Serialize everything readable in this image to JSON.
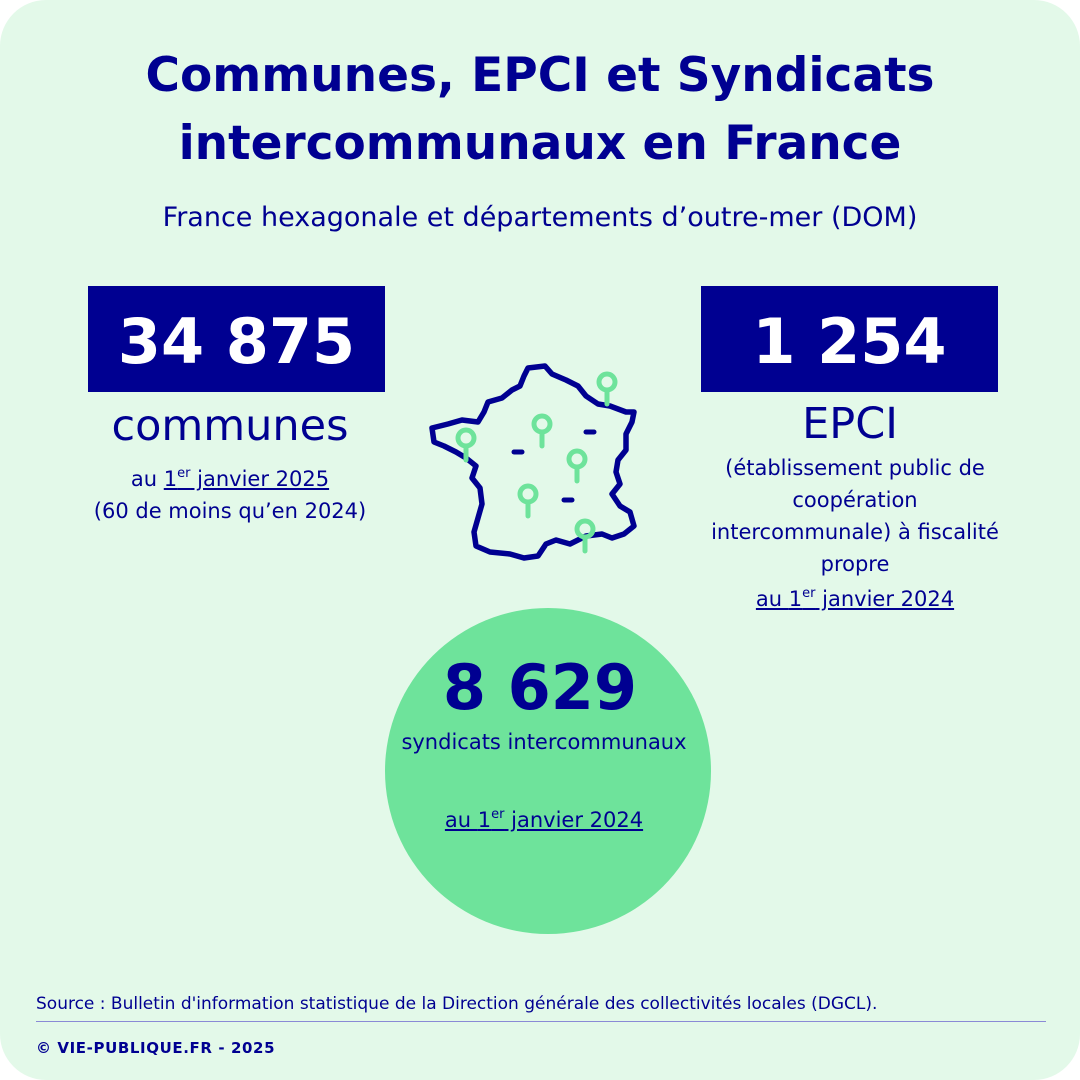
{
  "header": {
    "title": "Communes, EPCI et Syndicats intercommunaux en France",
    "subtitle": "France hexagonale et départements d’outre-mer (DOM)"
  },
  "communes": {
    "number": "34 875",
    "label": "communes",
    "date_prefix": "au ",
    "date_day": "1",
    "date_sup": "er",
    "date_suffix": " janvier 2025",
    "note": "(60 de moins qu’en 2024)"
  },
  "epci": {
    "number": "1 254",
    "label": "EPCI",
    "description": "(établissement public de coopération intercommunale) à fiscalité propre",
    "date_prefix": "au ",
    "date_day": "1",
    "date_sup": "er",
    "date_suffix": " janvier 2024"
  },
  "syndicats": {
    "number": "8 629",
    "label": "syndicats intercommunaux",
    "date_prefix": "au ",
    "date_day": "1",
    "date_sup": "er",
    "date_suffix": " janvier 2024"
  },
  "map_icon": {
    "name": "france-map-icon",
    "outline_color": "#000091",
    "pin_color": "#6ee39b"
  },
  "colors": {
    "background": "#e3f9e9",
    "primary": "#000091",
    "accent": "#6ee39b"
  },
  "footer": {
    "source": "Source :  Bulletin d'information statistique de la Direction générale des collectivités locales (DGCL).",
    "copyright": "© VIE-PUBLIQUE.FR - 2025"
  }
}
